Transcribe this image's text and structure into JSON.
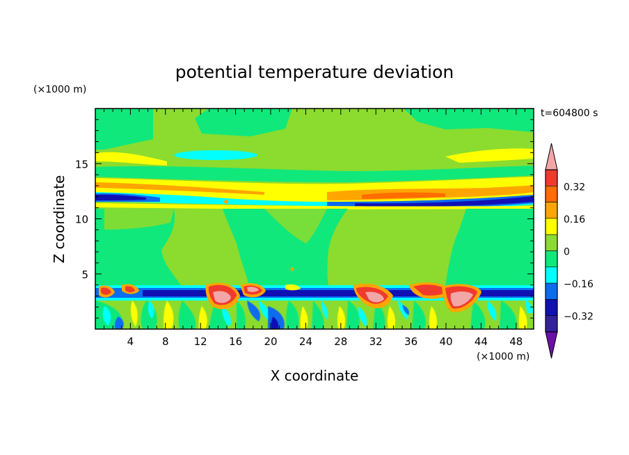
{
  "chart_data": {
    "type": "heatmap",
    "title": "potential temperature deviation",
    "xlabel": "X coordinate",
    "ylabel": "Z coordinate",
    "x_unit": "(×1000 m)",
    "z_unit": "(×1000 m)",
    "time_label": "t=604800 s",
    "xlim": [
      0,
      50
    ],
    "zlim": [
      0,
      20
    ],
    "x_ticks": [
      4,
      8,
      12,
      16,
      20,
      24,
      28,
      32,
      36,
      40,
      44,
      48
    ],
    "z_ticks": [
      5,
      10,
      15
    ],
    "colorbar": {
      "labels": [
        "0.32",
        "0.16",
        "0",
        "-0.16",
        "-0.32"
      ],
      "label_values": [
        0.32,
        0.16,
        0,
        -0.16,
        -0.32
      ],
      "levels": [
        {
          "min": 0.4,
          "max": null,
          "color": "#f2a6a6"
        },
        {
          "min": 0.32,
          "max": 0.4,
          "color": "#f03a2e"
        },
        {
          "min": 0.24,
          "max": 0.32,
          "color": "#ff6c00"
        },
        {
          "min": 0.16,
          "max": 0.24,
          "color": "#ffa500"
        },
        {
          "min": 0.08,
          "max": 0.16,
          "color": "#ffff00"
        },
        {
          "min": 0.0,
          "max": 0.08,
          "color": "#8bdc2e"
        },
        {
          "min": -0.08,
          "max": 0.0,
          "color": "#10e87c"
        },
        {
          "min": -0.16,
          "max": -0.08,
          "color": "#00ffff"
        },
        {
          "min": -0.24,
          "max": -0.16,
          "color": "#0a6cf0"
        },
        {
          "min": -0.32,
          "max": -0.24,
          "color": "#1010b4"
        },
        {
          "min": -0.4,
          "max": -0.32,
          "color": "#32209c"
        },
        {
          "min": null,
          "max": -0.4,
          "color": "#6a10a4"
        }
      ]
    },
    "field_description_regions": [
      {
        "feature": "warm layer",
        "z_range": [
          12.2,
          13.4
        ],
        "x_range": [
          0,
          50
        ],
        "value": 0.16
      },
      {
        "feature": "cold layer",
        "z_range": [
          11.2,
          12.2
        ],
        "x_range": [
          0,
          50
        ],
        "value": -0.3
      },
      {
        "feature": "cold boundary layer top",
        "z_range": [
          3.2,
          3.8
        ],
        "x_range": [
          0,
          50
        ],
        "value": -0.3
      },
      {
        "feature": "warm plumes near z=3.5",
        "x_centers": [
          14,
          17,
          32,
          36,
          40
        ],
        "value": 0.4
      }
    ]
  },
  "colors": {
    "background": "#ffffff",
    "axis": "#000000"
  }
}
